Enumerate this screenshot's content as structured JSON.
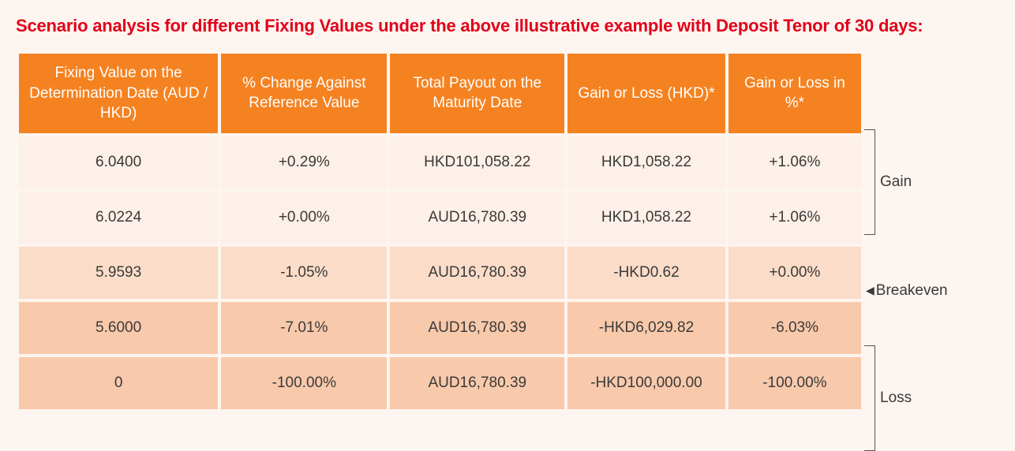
{
  "title": "Scenario analysis for different Fixing Values under the above illustrative example with Deposit Tenor of 30 days:",
  "columns": [
    "Fixing Value on the Determination Date (AUD / HKD)",
    "% Change Against Reference Value",
    "Total Payout on the Maturity Date",
    "Gain or Loss (HKD)*",
    "Gain or Loss in %*"
  ],
  "col_widths": [
    "24%",
    "20%",
    "21%",
    "19%",
    "16%"
  ],
  "rows": [
    {
      "shade": "r-light",
      "cells": [
        "6.0400",
        "+0.29%",
        "HKD101,058.22",
        "HKD1,058.22",
        "+1.06%"
      ]
    },
    {
      "shade": "r-light",
      "cells": [
        "6.0224",
        "+0.00%",
        "AUD16,780.39",
        "HKD1,058.22",
        "+1.06%"
      ]
    },
    {
      "shade": "r-mid",
      "cells": [
        "5.9593",
        "-1.05%",
        "AUD16,780.39",
        "-HKD0.62",
        "+0.00%"
      ]
    },
    {
      "shade": "r-dark",
      "cells": [
        "5.6000",
        "-7.01%",
        "AUD16,780.39",
        "-HKD6,029.82",
        "-6.03%"
      ]
    },
    {
      "shade": "r-dark",
      "cells": [
        "0",
        "-100.00%",
        "AUD16,780.39",
        "-HKD100,000.00",
        "-100.00%"
      ]
    }
  ],
  "annot": {
    "gain": "Gain",
    "breakeven": "Breakeven",
    "loss": "Loss"
  },
  "colors": {
    "title": "#e2001a",
    "header_bg": "#f58220",
    "header_fg": "#ffffff",
    "row_light": "#fdf0e8",
    "row_mid": "#fbdcc8",
    "row_dark": "#f9c9ab",
    "page_bg": "#fdf5f0"
  }
}
